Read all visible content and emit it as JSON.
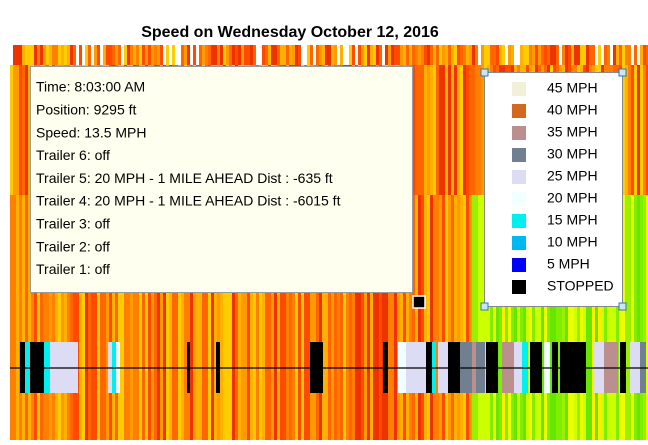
{
  "title": "Speed on Wednesday October 12, 2016",
  "tooltip": {
    "lines": [
      "Time:  8:03:00 AM",
      "Position: 9295 ft",
      "Speed: 13.5 MPH",
      "Trailer 6: off",
      "Trailer 5: 20 MPH - 1   MILE AHEAD Dist : -635 ft",
      "Trailer 4: 20 MPH - 1   MILE AHEAD Dist : -6015 ft",
      "Trailer 3: off",
      "Trailer 2: off",
      "Trailer 1: off"
    ]
  },
  "legend": {
    "items": [
      {
        "label": "45 MPH",
        "color": "#f2f0d6"
      },
      {
        "label": "40 MPH",
        "color": "#d2691e"
      },
      {
        "label": "35 MPH",
        "color": "#bc8f8f"
      },
      {
        "label": "30 MPH",
        "color": "#708090"
      },
      {
        "label": "25 MPH",
        "color": "#dcdcf5"
      },
      {
        "label": "20 MPH",
        "color": "#f0ffff"
      },
      {
        "label": "15 MPH",
        "color": "#00f0f0"
      },
      {
        "label": "10 MPH",
        "color": "#00b8f0"
      },
      {
        "label": "5 MPH",
        "color": "#0000ff"
      },
      {
        "label": "STOPPED",
        "color": "#000000"
      }
    ]
  }
}
